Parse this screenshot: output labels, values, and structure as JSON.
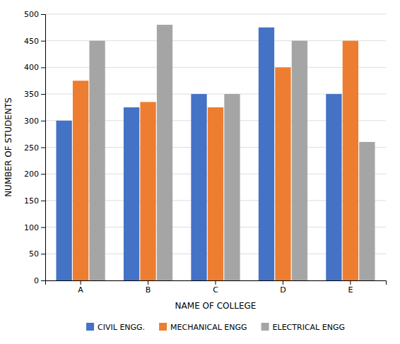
{
  "chart_data": {
    "type": "bar",
    "categories": [
      "A",
      "B",
      "C",
      "D",
      "E"
    ],
    "series": [
      {
        "name": "CIVIL ENGG.",
        "color": "#4472C4",
        "values": [
          300,
          325,
          350,
          475,
          350
        ]
      },
      {
        "name": "MECHANICAL ENGG",
        "color": "#ED7D31",
        "values": [
          375,
          335,
          325,
          400,
          450
        ]
      },
      {
        "name": "ELECTRICAL ENGG",
        "color": "#A5A5A5",
        "values": [
          450,
          480,
          350,
          450,
          260
        ]
      }
    ],
    "xlabel": "NAME OF COLLEGE",
    "ylabel": "NUMBER OF STUDENTS",
    "ylim": [
      0,
      500
    ],
    "yticks": [
      0,
      50,
      100,
      150,
      200,
      250,
      300,
      350,
      400,
      450,
      500
    ],
    "grid": true,
    "legend": "bottom"
  }
}
